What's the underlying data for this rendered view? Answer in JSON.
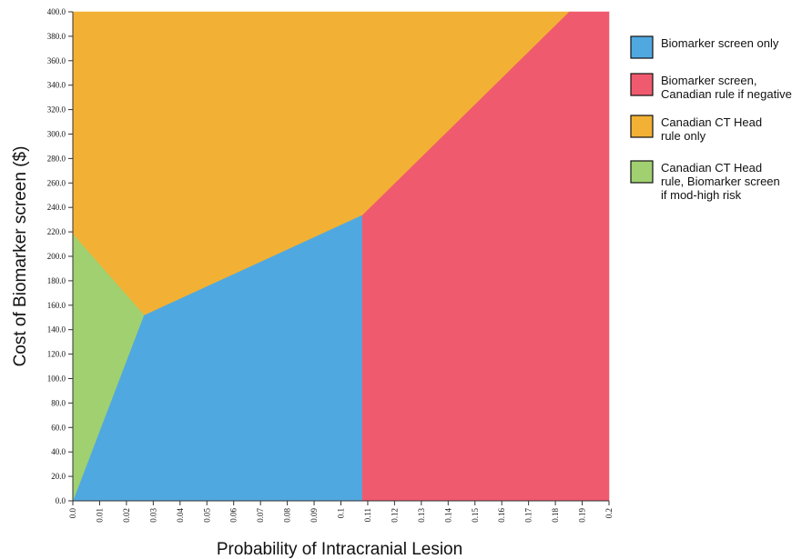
{
  "chart_data": {
    "type": "area",
    "title": "",
    "xlabel": "Probability of Intracranial Lesion",
    "ylabel": "Cost of Biomarker screen ($)",
    "xlim": [
      0.0,
      0.2
    ],
    "ylim": [
      0.0,
      400.0
    ],
    "x_ticks": [
      "0.0",
      "0.01",
      "0.02",
      "0.03",
      "0.04",
      "0.05",
      "0.06",
      "0.07",
      "0.08",
      "0.09",
      "0.1",
      "0.11",
      "0.12",
      "0.13",
      "0.14",
      "0.15",
      "0.16",
      "0.17",
      "0.18",
      "0.19",
      "0.2"
    ],
    "y_ticks": [
      "0.0",
      "20.0",
      "40.0",
      "60.0",
      "80.0",
      "100.0",
      "120.0",
      "140.0",
      "160.0",
      "180.0",
      "200.0",
      "220.0",
      "240.0",
      "260.0",
      "280.0",
      "300.0",
      "320.0",
      "340.0",
      "360.0",
      "380.0",
      "400.0"
    ],
    "grid": false,
    "legend_position": "right",
    "regions": [
      {
        "name": "Biomarker screen only",
        "color": "#50a8e0",
        "polygon": [
          [
            0.0,
            0.0
          ],
          [
            0.108,
            0.0
          ],
          [
            0.108,
            234.0
          ],
          [
            0.0265,
            152.0
          ]
        ]
      },
      {
        "name": "Biomarker screen, Canadian rule if negative",
        "color": "#f05a6e",
        "polygon": [
          [
            0.108,
            0.0
          ],
          [
            0.2,
            0.0
          ],
          [
            0.2,
            400.0
          ],
          [
            0.185,
            400.0
          ],
          [
            0.108,
            234.0
          ]
        ]
      },
      {
        "name": "Canadian CT Head rule only",
        "color": "#f2b134",
        "polygon": [
          [
            0.0,
            218.0
          ],
          [
            0.0,
            400.0
          ],
          [
            0.185,
            400.0
          ],
          [
            0.108,
            234.0
          ],
          [
            0.0265,
            152.0
          ]
        ]
      },
      {
        "name": "Canadian CT Head rule, Biomarker screen if mod-high risk",
        "color": "#a0d070",
        "polygon": [
          [
            0.0,
            0.0
          ],
          [
            0.0265,
            152.0
          ],
          [
            0.0,
            218.0
          ]
        ]
      }
    ]
  },
  "legend": [
    {
      "lines": [
        "Biomarker screen only"
      ],
      "color": "#50a8e0"
    },
    {
      "lines": [
        "Biomarker screen,",
        "Canadian rule if negative"
      ],
      "color": "#f05a6e"
    },
    {
      "lines": [
        "Canadian CT Head",
        "rule only"
      ],
      "color": "#f2b134"
    },
    {
      "lines": [
        "Canadian CT Head",
        "rule, Biomarker screen",
        "if mod-high risk"
      ],
      "color": "#a0d070"
    }
  ]
}
